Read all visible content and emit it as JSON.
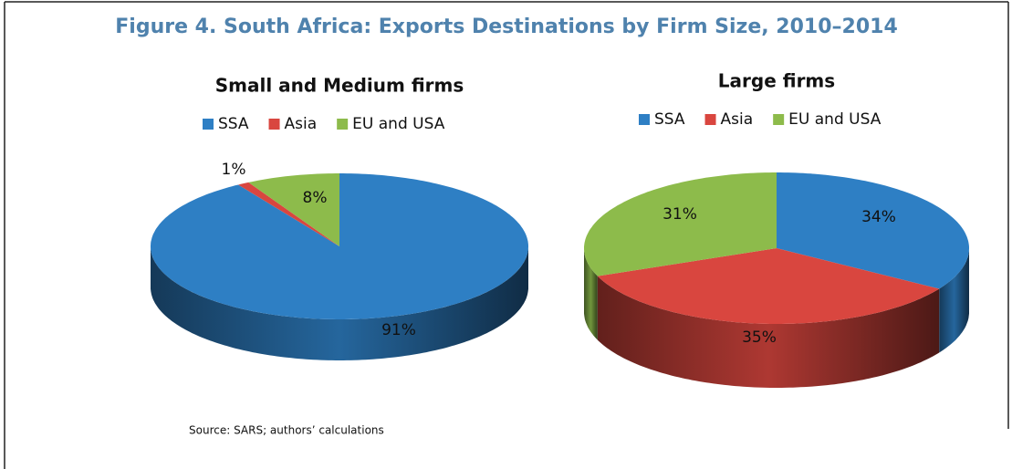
{
  "title": "Figure 4. South Africa: Exports Destinations by Firm Size, 2010–2014",
  "source": "Source: SARS; authors’ calculations",
  "chart_data": [
    {
      "type": "pie",
      "title": "Small and Medium firms",
      "categories": [
        "SSA",
        "Asia",
        "EU and USA"
      ],
      "values": [
        91,
        1,
        8
      ],
      "value_labels": [
        "91%",
        "1%",
        "8%"
      ],
      "colors": [
        "#2e7fc4",
        "#d9463f",
        "#8dbb4b"
      ]
    },
    {
      "type": "pie",
      "title": "Large firms",
      "categories": [
        "SSA",
        "Asia",
        "EU and USA"
      ],
      "values": [
        34,
        35,
        31
      ],
      "value_labels": [
        "34%",
        "35%",
        "31%"
      ],
      "colors": [
        "#2e7fc4",
        "#d9463f",
        "#8dbb4b"
      ]
    }
  ]
}
